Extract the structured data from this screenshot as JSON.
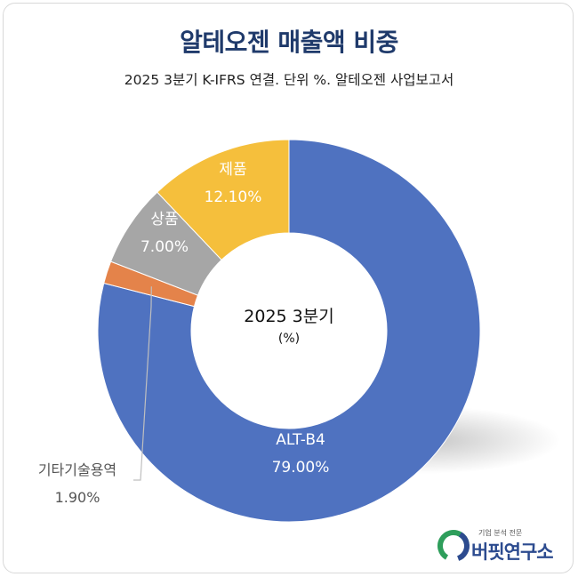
{
  "title": "알테오젠 매출액 비중",
  "subtitle": "2025 3분기 K-IFRS 연결. 단위 %. 알테오젠 사업보고서",
  "center_label": {
    "line1": "2025 3분기",
    "line2": "(%)"
  },
  "brand": {
    "tagline": "기업 분석 전문",
    "name": "버핏연구소"
  },
  "colors": {
    "ALT-B4": "#4f72c0",
    "기타기술용역": "#e4834a",
    "상품": "#a6a6a6",
    "제품": "#f5bf3c"
  },
  "chart_data": {
    "type": "pie",
    "donut": true,
    "title": "알테오젠 매출액 비중",
    "subtitle": "2025 3분기 K-IFRS 연결. 단위 %. 알테오젠 사업보고서",
    "unit": "%",
    "start": "12 o'clock",
    "direction": "clockwise",
    "slices": [
      {
        "label": "ALT-B4",
        "value": 79.0,
        "display": "79.00%"
      },
      {
        "label": "기타기술용역",
        "value": 1.9,
        "display": "1.90%"
      },
      {
        "label": "상품",
        "value": 7.0,
        "display": "7.00%"
      },
      {
        "label": "제품",
        "value": 12.1,
        "display": "12.10%"
      }
    ]
  }
}
